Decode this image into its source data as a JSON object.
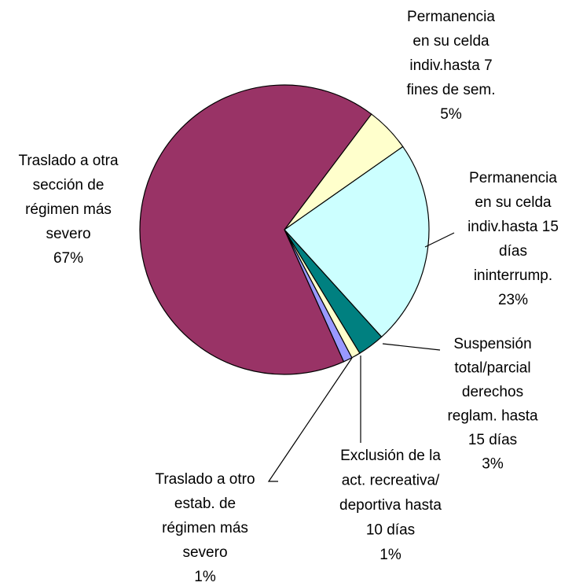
{
  "chart_data": {
    "type": "pie",
    "categories": [
      "Permanencia\nen su celda\nindiv.hasta 7\nfines de sem.",
      "Permanencia\nen su celda\nindiv.hasta 15\ndías\nininterrump.",
      "Suspensión\ntotal/parcial\nderechos\nreglam. hasta\n15 días",
      "Exclusión de la\nact. recreativa/\ndeportiva hasta\n10 días",
      "Traslado a otro\nestab. de\nrégimen más\nsevero",
      "Traslado a otra\nsección de\nrégimen más\nsevero"
    ],
    "values": [
      5,
      23,
      3,
      1,
      1,
      67
    ],
    "value_labels": [
      "5%",
      "23%",
      "3%",
      "1%",
      "1%",
      "67%"
    ],
    "colors": [
      "#ffffcc",
      "#ccffff",
      "#008080",
      "#ffffcc",
      "#9999ff",
      "#993366"
    ]
  }
}
